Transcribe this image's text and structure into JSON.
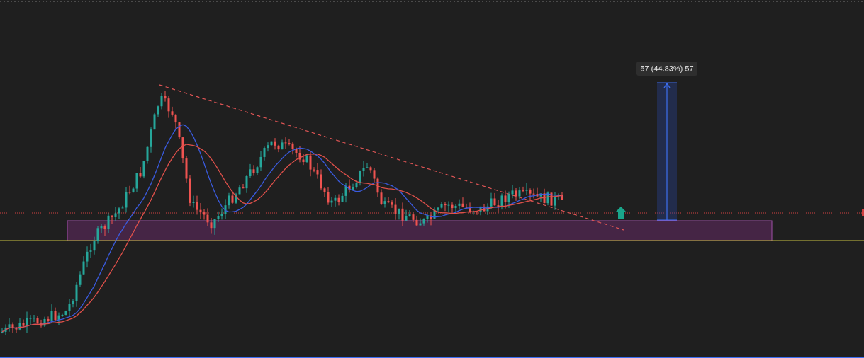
{
  "measure_label": "57 (44.83%) 57"
}
